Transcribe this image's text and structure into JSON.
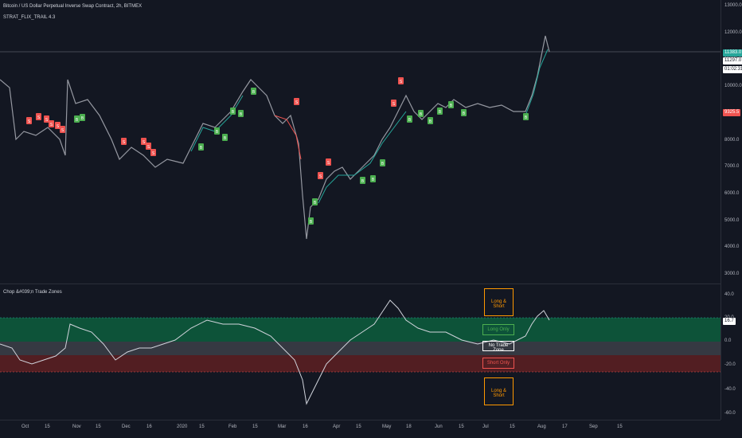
{
  "header": {
    "title": "Bitcoin / US Dollar Perpetual Inverse Swap Contract, 2h, BITMEX",
    "strategy": "STRAT_FLIX_TRAIL 4.3"
  },
  "price_axis": {
    "ticks": [
      "13000.0",
      "12000.0",
      "11000.0",
      "10000.0",
      "9000.0",
      "8000.0",
      "7000.0",
      "6000.0",
      "5000.0",
      "4000.0",
      "3000.0"
    ],
    "current_price": "11383.0",
    "secondary_price": "11297.0",
    "countdown": "01:02:31",
    "stop_level": "9325.5"
  },
  "indicator": {
    "title": "Chop &#039;n Trade Zones",
    "ticks": [
      "40.0",
      "20.0",
      "0.0",
      "-20.0",
      "-40.0",
      "-60.0"
    ],
    "current_value": "16.7",
    "zones": {
      "long_short_top": "Long & Short",
      "long_only": "Long Only",
      "no_trade": "No Trade Zone",
      "short_only": "Short Only",
      "long_short_bottom": "Long & Short"
    }
  },
  "time_axis": {
    "ticks": [
      "Oct",
      "15",
      "Nov",
      "15",
      "Dec",
      "16",
      "2020",
      "15",
      "Feb",
      "15",
      "Mar",
      "16",
      "Apr",
      "15",
      "May",
      "18",
      "Jun",
      "15",
      "Jul",
      "15",
      "Aug",
      "17",
      "Sep",
      "15"
    ]
  },
  "signals": {
    "sell_label": "S",
    "buy_label": "B"
  },
  "colors": {
    "background": "#131722",
    "buy": "#26a69a",
    "buy_badge": "#4caf50",
    "sell": "#ef5350",
    "price_line": "#9598a1",
    "current_price_bg": "#26a69a",
    "stop_bg": "#ef5350",
    "zone_green": "#0d5a3c",
    "zone_grey": "#3a3d46",
    "zone_red": "#5a1f22",
    "orange": "#ff9800"
  }
}
